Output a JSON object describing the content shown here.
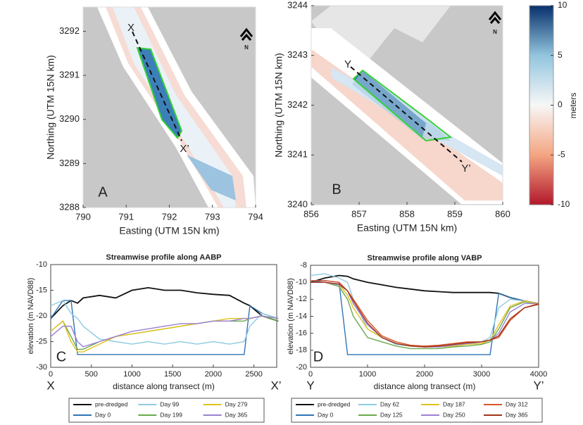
{
  "chart_data": [
    {
      "type": "map",
      "panel_label": "A",
      "xlabel": "Easting (UTM 15N km)",
      "ylabel": "Northing (UTM 15N km)",
      "xlim": [
        790,
        794
      ],
      "xticks": [
        790,
        791,
        792,
        793,
        794
      ],
      "ylim": [
        3288,
        3292.55
      ],
      "yticks": [
        3288,
        3289,
        3290,
        3291,
        3292
      ],
      "annotations": [
        "X",
        "X’"
      ],
      "north_label": "N"
    },
    {
      "type": "map",
      "panel_label": "B",
      "xlabel": "Easting (UTM 15N km)",
      "ylabel": "Northing (UTM 15N km)",
      "xlim": [
        856,
        860
      ],
      "xticks": [
        856,
        857,
        858,
        859,
        860
      ],
      "ylim": [
        3240,
        3244
      ],
      "yticks": [
        3240,
        3241,
        3242,
        3243,
        3244
      ],
      "annotations": [
        "Y",
        "Y’"
      ],
      "north_label": "N"
    },
    {
      "type": "colorbar",
      "label": "meters",
      "ylim": [
        -10,
        10
      ],
      "yticks": [
        -10,
        -5,
        0,
        5,
        10
      ]
    },
    {
      "type": "line",
      "panel_label": "C",
      "title": "Streamwise profile along AABP",
      "xlabel": "distance along transect (m)",
      "ylabel": "elevation (m NAVD88)",
      "annotations": [
        "X",
        "X’"
      ],
      "xlim": [
        0,
        2780
      ],
      "xticks": [
        0,
        500,
        1000,
        1500,
        2000,
        2500
      ],
      "ylim": [
        -30,
        -10
      ],
      "yticks": [
        -30,
        -25,
        -20,
        -15,
        -10
      ],
      "x": [
        0,
        150,
        250,
        330,
        400,
        600,
        800,
        1000,
        1200,
        1400,
        1600,
        1800,
        2000,
        2200,
        2380,
        2450,
        2600,
        2800
      ],
      "series": [
        {
          "name": "pre-dredged",
          "color": "#111111",
          "values": [
            -20.5,
            -18,
            -17,
            -17.5,
            -16.5,
            -16,
            -16.5,
            -15,
            -14.5,
            -15,
            -15,
            -15.5,
            -15.8,
            -16,
            -17.5,
            -18,
            -20,
            -21
          ]
        },
        {
          "name": "Day 0",
          "color": "#2f74b5",
          "values": [
            -20.5,
            -17,
            -17,
            -27.5,
            -27.5,
            -27.5,
            -27.5,
            -27.5,
            -27.5,
            -27.5,
            -27.5,
            -27.5,
            -27.5,
            -27.5,
            -27.5,
            -18,
            -19.5,
            -20.5
          ]
        },
        {
          "name": "Day 99",
          "color": "#8fcbe3",
          "values": [
            -18,
            -17,
            -19.5,
            -20.5,
            -22,
            -24.5,
            -25,
            -25.5,
            -25,
            -25.5,
            -25,
            -25.5,
            -25,
            -25.5,
            -25,
            -22,
            -19.5,
            -20.5
          ]
        },
        {
          "name": "Day 199",
          "color": "#6aa84f",
          "values": [
            -23,
            -21,
            -24,
            -26.5,
            -26.5,
            -25,
            -24,
            -23.5,
            -23,
            -22.5,
            -22,
            -21.5,
            -21,
            -21,
            -21,
            -20.5,
            -20,
            -21
          ]
        },
        {
          "name": "Day 279",
          "color": "#e3c21a",
          "values": [
            -23,
            -21,
            -25,
            -27,
            -27,
            -25.5,
            -24,
            -23.5,
            -23,
            -22.5,
            -22,
            -21.5,
            -21,
            -20.5,
            -20.5,
            -20.5,
            -20,
            -20.5
          ]
        },
        {
          "name": "Day 365",
          "color": "#9b7fd1",
          "values": [
            -24,
            -22,
            -22,
            -25,
            -26,
            -25,
            -24,
            -23,
            -22.5,
            -22,
            -21.5,
            -21.5,
            -21,
            -21,
            -20.5,
            -20.5,
            -20,
            -20.5
          ]
        }
      ]
    },
    {
      "type": "line",
      "panel_label": "D",
      "title": "Streamwise profile along VABP",
      "xlabel": "distance along transect (m)",
      "ylabel": "elevation (m NAVD88)",
      "annotations": [
        "Y",
        "Y’"
      ],
      "xlim": [
        0,
        4000
      ],
      "xticks": [
        0,
        1000,
        2000,
        3000,
        4000
      ],
      "ylim": [
        -20,
        -8
      ],
      "yticks": [
        -20,
        -18,
        -16,
        -14,
        -12,
        -10,
        -8
      ],
      "x": [
        0,
        250,
        500,
        650,
        750,
        1000,
        1250,
        1500,
        1750,
        2000,
        2250,
        2500,
        2750,
        3000,
        3150,
        3300,
        3500,
        3750,
        4000
      ],
      "series": [
        {
          "name": "pre-dredged",
          "color": "#111111",
          "values": [
            -10,
            -9.5,
            -9.2,
            -9.3,
            -9.6,
            -10,
            -10.3,
            -10.6,
            -10.8,
            -11,
            -11.1,
            -11.2,
            -11.2,
            -11.2,
            -11.2,
            -11.3,
            -11.8,
            -12.2,
            -12.5
          ]
        },
        {
          "name": "Day 0",
          "color": "#2f74b5",
          "values": [
            -10,
            -9.8,
            -10,
            -18.5,
            -18.5,
            -18.5,
            -18.5,
            -18.5,
            -18.5,
            -18.5,
            -18.5,
            -18.5,
            -18.5,
            -18.5,
            -18.5,
            -11.3,
            -11.8,
            -12.2,
            -12.5
          ]
        },
        {
          "name": "Day 62",
          "color": "#8fcbe3",
          "values": [
            -9.2,
            -9,
            -9.5,
            -10,
            -12,
            -15.5,
            -16.5,
            -17.3,
            -17.5,
            -17.5,
            -17.5,
            -17.5,
            -17.3,
            -17,
            -16.5,
            -13,
            -12,
            -12.2,
            -12.5
          ]
        },
        {
          "name": "Day 125",
          "color": "#6aa84f",
          "values": [
            -10,
            -10,
            -10.5,
            -12,
            -14,
            -16.5,
            -17,
            -17.5,
            -17.8,
            -17.8,
            -17.8,
            -17.6,
            -17.5,
            -17.3,
            -17,
            -15.5,
            -13,
            -12.3,
            -12.5
          ]
        },
        {
          "name": "Day 187",
          "color": "#e3c21a",
          "values": [
            -10,
            -10,
            -10.3,
            -11.5,
            -13,
            -15.5,
            -16.5,
            -17.2,
            -17.5,
            -17.6,
            -17.6,
            -17.5,
            -17.3,
            -17.2,
            -16.8,
            -15,
            -12.8,
            -12.2,
            -12.5
          ]
        },
        {
          "name": "Day 250",
          "color": "#9b7fd1",
          "values": [
            -10,
            -10,
            -10.3,
            -11,
            -12.5,
            -15,
            -16.5,
            -17.2,
            -17.5,
            -17.6,
            -17.6,
            -17.4,
            -17.2,
            -17,
            -16.8,
            -16,
            -13.5,
            -12.5,
            -12.5
          ]
        },
        {
          "name": "Day 312",
          "color": "#d9542a",
          "values": [
            -9.8,
            -9.8,
            -10,
            -11,
            -12,
            -14.5,
            -16.3,
            -17,
            -17.4,
            -17.5,
            -17.4,
            -17.2,
            -17,
            -17,
            -16.8,
            -16.5,
            -14.5,
            -13,
            -12.5
          ]
        },
        {
          "name": "Day 365",
          "color": "#a0341a",
          "values": [
            -10,
            -10,
            -10.2,
            -11,
            -12.2,
            -14.8,
            -16.5,
            -17.2,
            -17.5,
            -17.6,
            -17.5,
            -17.3,
            -17.1,
            -17,
            -16.8,
            -16.3,
            -14.3,
            -13,
            -12.6
          ]
        }
      ]
    }
  ]
}
